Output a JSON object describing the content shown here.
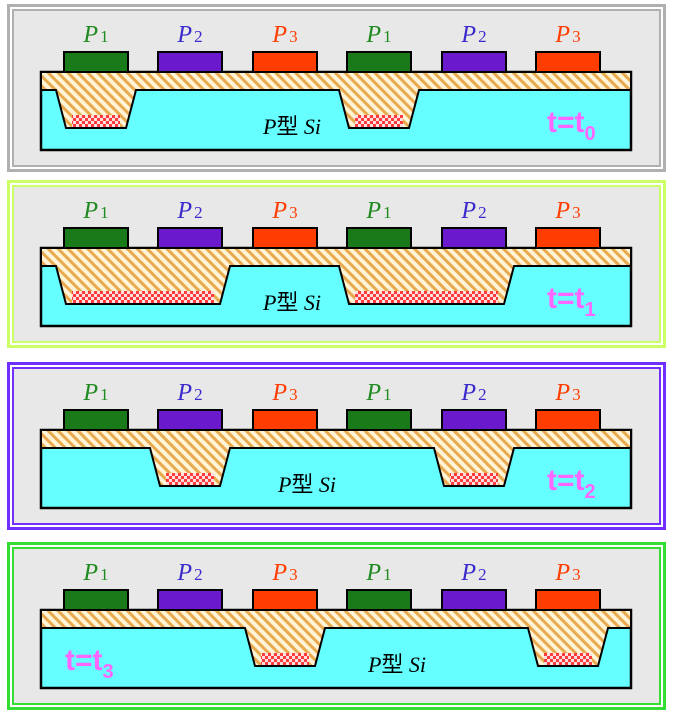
{
  "colors": {
    "panel_bg": "#e8e8e8",
    "substrate": "#66ffff",
    "oxide_base": "#fff4d6",
    "oxide_stripe": "#e8a94f",
    "charge_packet_a": "#ff3b3b",
    "charge_packet_b": "#ffe0e0",
    "time_label": "#ff66ff",
    "border_gray": "#b0b0b0",
    "border_yellowgreen": "#ccff66",
    "border_purple": "#7030ff",
    "border_green": "#33dd33"
  },
  "electrodes": [
    {
      "main": "P",
      "sub": "1",
      "fill": "#1a7a1a",
      "text_color": "#1f8a1f"
    },
    {
      "main": "P",
      "sub": "2",
      "fill": "#6a1acc",
      "text_color": "#3a2acc"
    },
    {
      "main": "P",
      "sub": "3",
      "fill": "#ff3d00",
      "text_color": "#ff3d00"
    },
    {
      "main": "P",
      "sub": "1",
      "fill": "#1a7a1a",
      "text_color": "#1f8a1f"
    },
    {
      "main": "P",
      "sub": "2",
      "fill": "#6a1acc",
      "text_color": "#3a2acc"
    },
    {
      "main": "P",
      "sub": "3",
      "fill": "#ff3d00",
      "text_color": "#ff3d00"
    }
  ],
  "substrate_label": {
    "italic": "P",
    "cjk": "型",
    "italic2": " Si"
  },
  "panels": [
    {
      "id": "t0",
      "border_color": "#b0b0b0",
      "time_main": "t=t",
      "time_sub": "0",
      "time_pos": "right",
      "wells": [
        {
          "under": [
            0
          ],
          "packet_fill": 1.0
        },
        {
          "under": [
            3
          ],
          "packet_fill": 1.0
        }
      ]
    },
    {
      "id": "t1",
      "border_color": "#ccff66",
      "time_main": "t=t",
      "time_sub": "1",
      "time_pos": "right",
      "wells": [
        {
          "under": [
            0,
            1
          ],
          "packet_fill": 1.0
        },
        {
          "under": [
            3,
            4
          ],
          "packet_fill": 1.0
        }
      ]
    },
    {
      "id": "t2",
      "border_color": "#7030ff",
      "time_main": "t=t",
      "time_sub": "2",
      "time_pos": "right",
      "wells": [
        {
          "under": [
            1
          ],
          "packet_fill": 1.0
        },
        {
          "under": [
            4
          ],
          "packet_fill": 1.0
        }
      ]
    },
    {
      "id": "t3",
      "border_color": "#33dd33",
      "time_main": "t=t",
      "time_sub": "3",
      "time_pos": "left",
      "wells": [
        {
          "under": [
            2
          ],
          "packet_fill": 1.0
        },
        {
          "under": [
            5
          ],
          "packet_fill": 1.0
        }
      ]
    }
  ]
}
